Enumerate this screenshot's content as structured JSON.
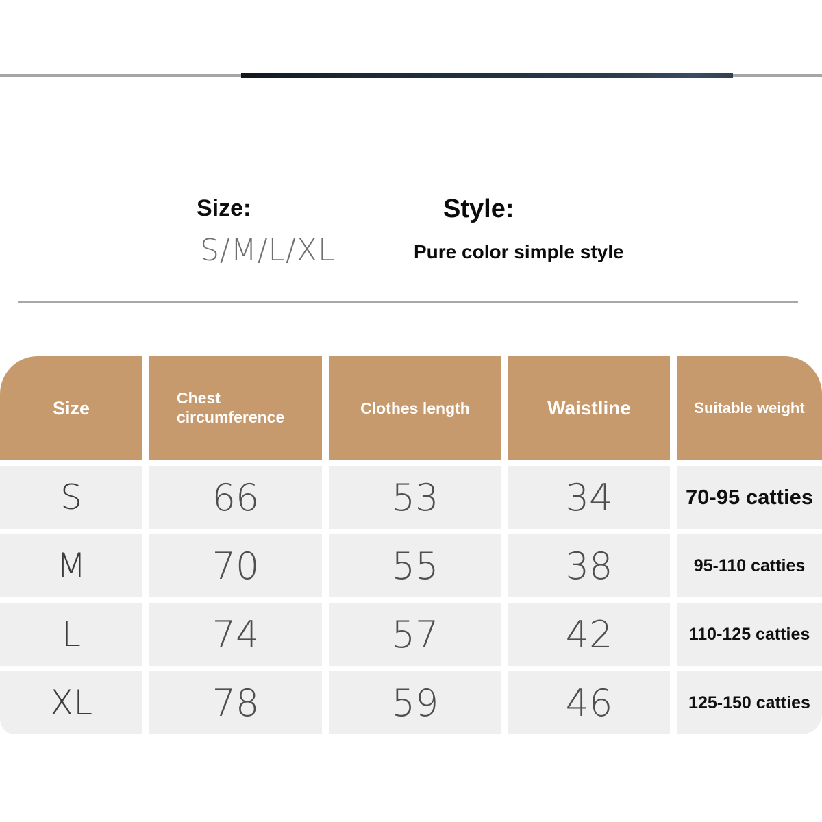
{
  "info": {
    "size_label": "Size:",
    "size_value": "S/M/L/XL",
    "style_label": "Style:",
    "style_value": "Pure color simple style"
  },
  "chart_data": {
    "type": "table",
    "columns": [
      "Size",
      "Chest circumference",
      "Clothes length",
      "Waistline",
      "Suitable weight"
    ],
    "rows": [
      [
        "S",
        "66",
        "53",
        "34",
        "70-95 catties"
      ],
      [
        "M",
        "70",
        "55",
        "38",
        "95-110 catties"
      ],
      [
        "L",
        "74",
        "57",
        "42",
        "110-125 catties"
      ],
      [
        "XL",
        "78",
        "59",
        "46",
        "125-150 catties"
      ]
    ]
  },
  "colors": {
    "header_bg": "#c79a6e",
    "header_text": "#ffffff",
    "row_bg": "#efefef",
    "value_text": "#4f4f4f",
    "bold_text": "#101010",
    "divider": "#a8a8a8",
    "photo_strip_gray": "#a6a6a6",
    "photo_strip_dark": "#223240"
  }
}
